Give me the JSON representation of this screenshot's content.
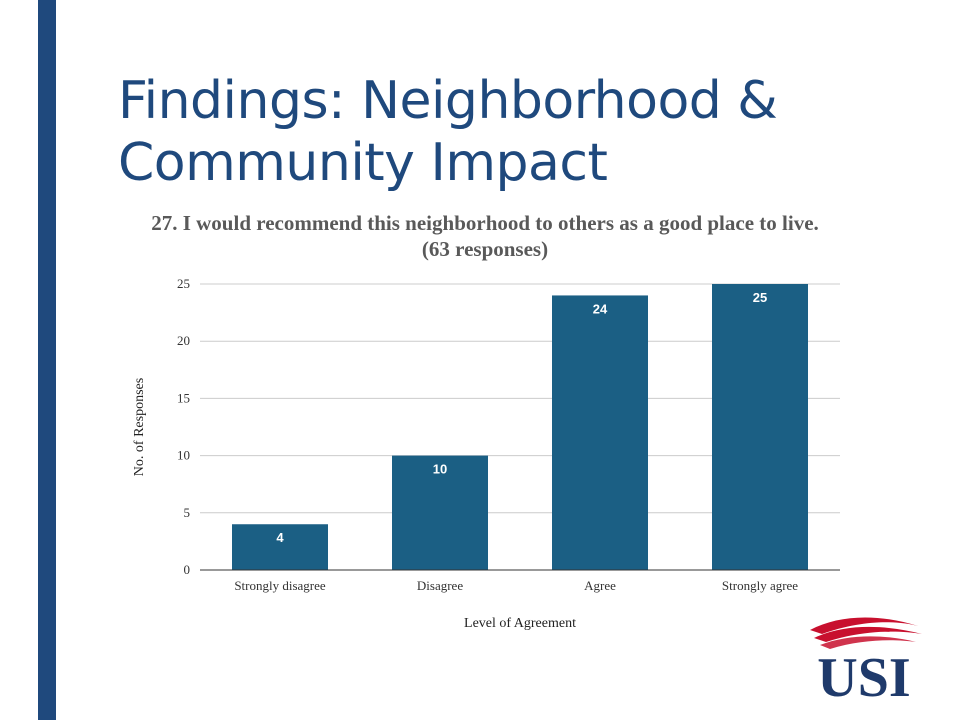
{
  "slide": {
    "title": "Findings: Neighborhood & Community Impact",
    "accent_color": "#1f497d"
  },
  "chart_data": {
    "type": "bar",
    "title": "27. I would recommend this neighborhood to others as a good place to live. (63 responses)",
    "categories": [
      "Strongly disagree",
      "Disagree",
      "Agree",
      "Strongly agree"
    ],
    "values": [
      4,
      10,
      24,
      25
    ],
    "data_labels": [
      "4",
      "10",
      "24",
      "25"
    ],
    "xlabel": "Level of Agreement",
    "ylabel": "No. of Responses",
    "ylim": [
      0,
      25
    ],
    "yticks": [
      0,
      5,
      10,
      15,
      20,
      25
    ],
    "grid": true,
    "legend": "none",
    "bar_color": "#1b5f84"
  },
  "logo": {
    "text": "USI",
    "icon": "usi-logo-icon",
    "colors": {
      "wordmark": "#1f3a6b",
      "flame": "#c8102e"
    }
  }
}
